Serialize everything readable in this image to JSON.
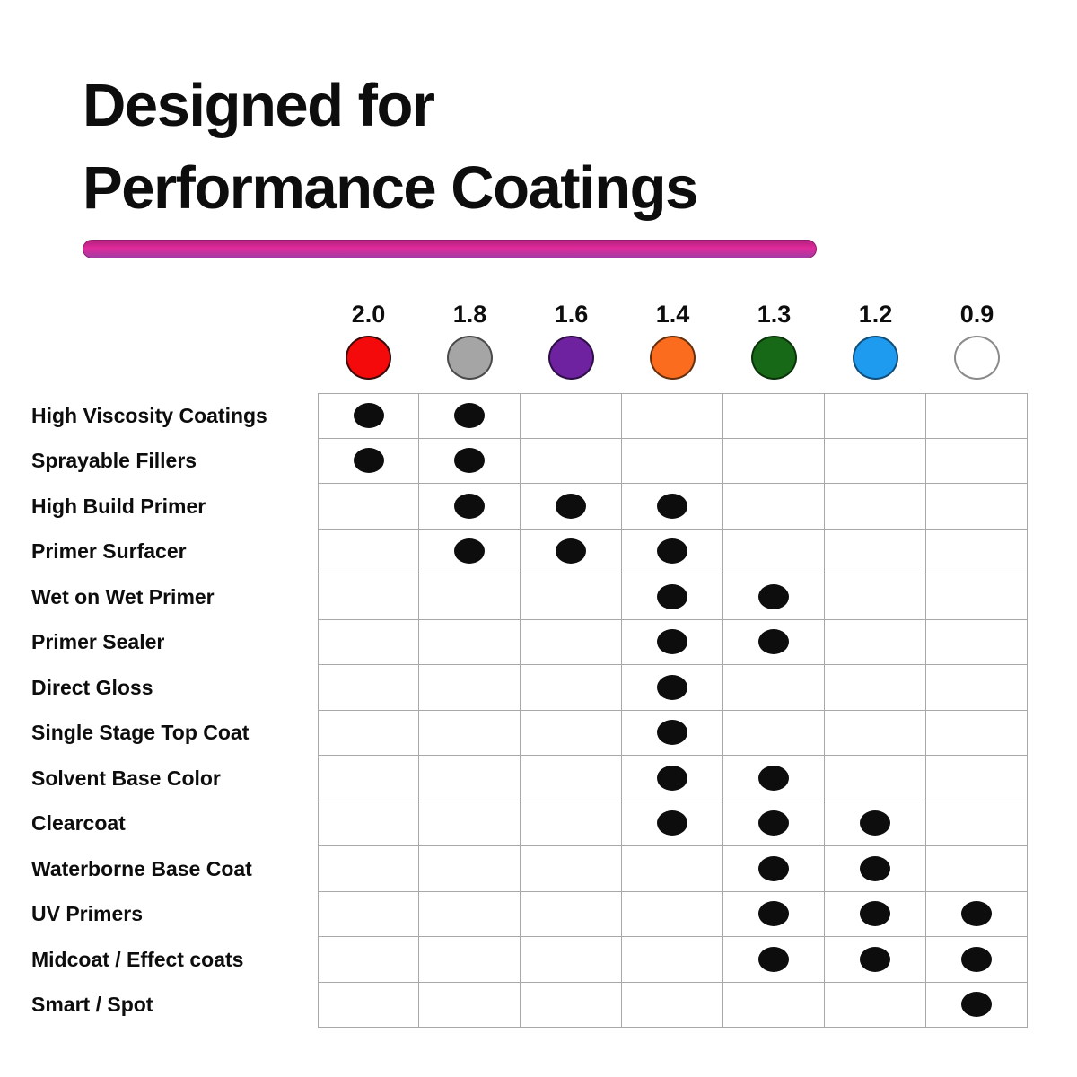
{
  "title": {
    "line1": "Designed for",
    "line2": "Performance Coatings"
  },
  "accent": {
    "underline_color": "#d6219c",
    "underline_border": "#8e1d6b",
    "text_color": "#0d0d0d",
    "grid_color": "#a8a8a8",
    "mark_color": "#0d0d0d"
  },
  "chart_data": {
    "type": "table",
    "title": "Designed for Performance Coatings",
    "legend_position": "top",
    "grid": true,
    "columns": [
      {
        "label": "2.0",
        "color": "#f40a0a",
        "border": "#3a0a0a",
        "color_name": "red"
      },
      {
        "label": "1.8",
        "color": "#a5a5a5",
        "border": "#4a4a4a",
        "color_name": "gray"
      },
      {
        "label": "1.6",
        "color": "#6e22a0",
        "border": "#2e0f45",
        "color_name": "purple"
      },
      {
        "label": "1.4",
        "color": "#fb6c1e",
        "border": "#66300e",
        "color_name": "orange"
      },
      {
        "label": "1.3",
        "color": "#176917",
        "border": "#0b330b",
        "color_name": "dark-green"
      },
      {
        "label": "1.2",
        "color": "#1e9aef",
        "border": "#114f7a",
        "color_name": "light-blue"
      },
      {
        "label": "0.9",
        "color": "#ffffff",
        "border": "#8a8a8a",
        "color_name": "white"
      }
    ],
    "rows": [
      {
        "label": "High Viscosity Coatings",
        "marks": [
          "2.0",
          "1.8"
        ]
      },
      {
        "label": "Sprayable Fillers",
        "marks": [
          "2.0",
          "1.8"
        ]
      },
      {
        "label": "High Build Primer",
        "marks": [
          "1.8",
          "1.6",
          "1.4"
        ]
      },
      {
        "label": "Primer Surfacer",
        "marks": [
          "1.8",
          "1.6",
          "1.4"
        ]
      },
      {
        "label": "Wet on Wet Primer",
        "marks": [
          "1.4",
          "1.3"
        ]
      },
      {
        "label": "Primer Sealer",
        "marks": [
          "1.4",
          "1.3"
        ]
      },
      {
        "label": "Direct Gloss",
        "marks": [
          "1.4"
        ]
      },
      {
        "label": "Single Stage Top Coat",
        "marks": [
          "1.4"
        ]
      },
      {
        "label": "Solvent Base Color",
        "marks": [
          "1.4",
          "1.3"
        ]
      },
      {
        "label": "Clearcoat",
        "marks": [
          "1.4",
          "1.3",
          "1.2"
        ]
      },
      {
        "label": "Waterborne Base Coat",
        "marks": [
          "1.3",
          "1.2"
        ]
      },
      {
        "label": "UV Primers",
        "marks": [
          "1.3",
          "1.2",
          "0.9"
        ]
      },
      {
        "label": "Midcoat / Effect coats",
        "marks": [
          "1.3",
          "1.2",
          "0.9"
        ]
      },
      {
        "label": "Smart / Spot",
        "marks": [
          "0.9"
        ]
      }
    ]
  }
}
